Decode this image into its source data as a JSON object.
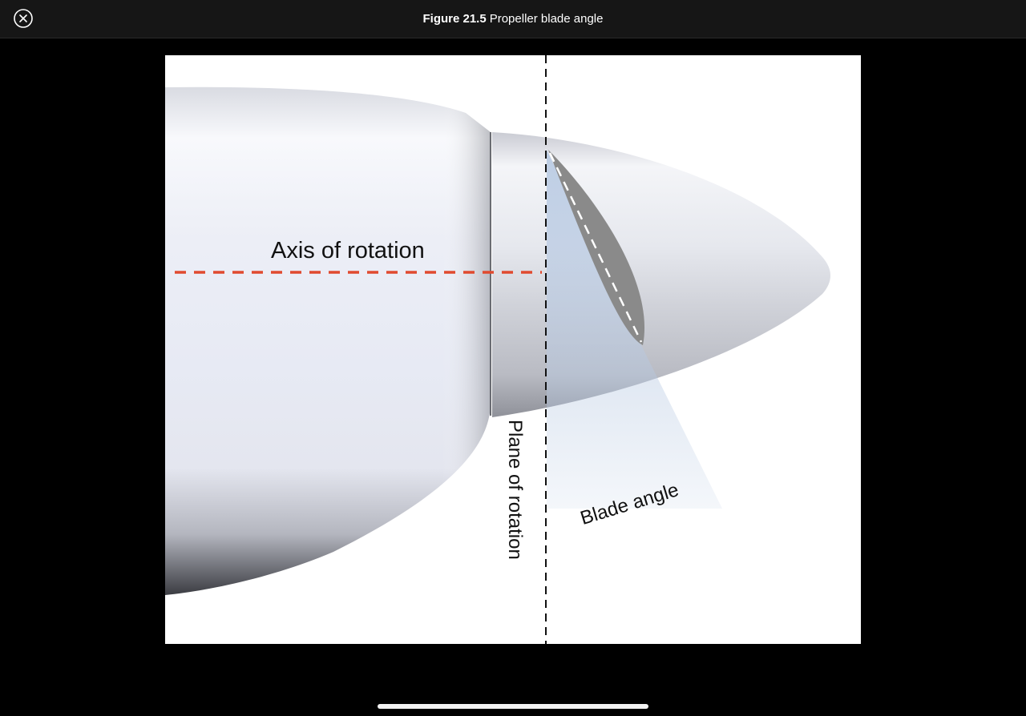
{
  "header": {
    "figure_number": "Figure 21.5",
    "figure_title": "Propeller blade angle"
  },
  "icons": {
    "close": "close-circle-icon"
  },
  "diagram": {
    "labels": {
      "axis": "Axis of rotation",
      "plane": "Plane of rotation",
      "blade": "Blade angle"
    },
    "colors": {
      "axis_line": "#e04a2f",
      "plane_line": "#111111",
      "blade": "#8a8a8a",
      "angle_wedge": "#b7c9e2"
    }
  }
}
